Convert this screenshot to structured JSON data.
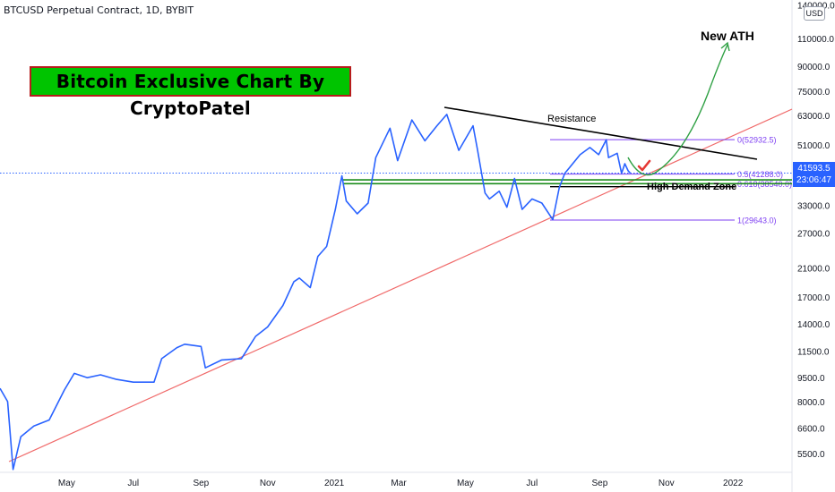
{
  "header": {
    "symbol_line": "BTCUSD Perpetual Contract, 1D, BYBIT"
  },
  "banner": {
    "text": "Bitcoin Exclusive Chart By CryptoPatel"
  },
  "scale_unit": "USD",
  "last_price": {
    "value": "41593.5",
    "countdown": "23:06:47"
  },
  "annotations": {
    "resistance": "Resistance",
    "new_ath": "New ATH",
    "demand_zone": "High Demand Zone"
  },
  "fib_levels": [
    {
      "label": "0(52932.5)",
      "price": 52932.5
    },
    {
      "label": "0.5(41288.0)",
      "price": 41288.0
    },
    {
      "label": "0.618(38540.0)",
      "price": 38540.0
    },
    {
      "label": "1(29643.0)",
      "price": 29643.0
    }
  ],
  "chart_data": {
    "type": "line",
    "y_scale": "log",
    "ylim": [
      4800,
      145000
    ],
    "y_ticks": [
      {
        "value": 140000,
        "label": "140000.0"
      },
      {
        "value": 110000,
        "label": "110000.0"
      },
      {
        "value": 90000,
        "label": "90000.0"
      },
      {
        "value": 75000,
        "label": "75000.0"
      },
      {
        "value": 63000,
        "label": "63000.0"
      },
      {
        "value": 51000,
        "label": "51000.0"
      },
      {
        "value": 33000,
        "label": "33000.0"
      },
      {
        "value": 27000,
        "label": "27000.0"
      },
      {
        "value": 21000,
        "label": "21000.0"
      },
      {
        "value": 17000,
        "label": "17000.0"
      },
      {
        "value": 14000,
        "label": "14000.0"
      },
      {
        "value": 11500,
        "label": "11500.0"
      },
      {
        "value": 9500,
        "label": "9500.0"
      },
      {
        "value": 8000,
        "label": "8000.0"
      },
      {
        "value": 6600,
        "label": "6600.0"
      },
      {
        "value": 5500,
        "label": "5500.0"
      }
    ],
    "x_ticks": [
      {
        "date": "2020-05-01",
        "label": "May"
      },
      {
        "date": "2020-07-01",
        "label": "Jul"
      },
      {
        "date": "2020-09-01",
        "label": "Sep"
      },
      {
        "date": "2020-11-01",
        "label": "Nov"
      },
      {
        "date": "2021-01-01",
        "label": "2021"
      },
      {
        "date": "2021-03-01",
        "label": "Mar"
      },
      {
        "date": "2021-05-01",
        "label": "May"
      },
      {
        "date": "2021-07-01",
        "label": "Jul"
      },
      {
        "date": "2021-09-01",
        "label": "Sep"
      },
      {
        "date": "2021-11-01",
        "label": "Nov"
      },
      {
        "date": "2022-01-01",
        "label": "2022"
      }
    ],
    "x_range": [
      "2020-03-01",
      "2022-02-24"
    ],
    "series": [
      {
        "color": "#2962ff",
        "points": [
          [
            "2020-03-01",
            8800
          ],
          [
            "2020-03-08",
            8000
          ],
          [
            "2020-03-13",
            4900
          ],
          [
            "2020-03-20",
            6200
          ],
          [
            "2020-04-01",
            6700
          ],
          [
            "2020-04-15",
            7000
          ],
          [
            "2020-04-29",
            8700
          ],
          [
            "2020-05-08",
            9800
          ],
          [
            "2020-05-20",
            9500
          ],
          [
            "2020-06-01",
            9700
          ],
          [
            "2020-06-15",
            9400
          ],
          [
            "2020-07-01",
            9200
          ],
          [
            "2020-07-20",
            9200
          ],
          [
            "2020-07-27",
            10900
          ],
          [
            "2020-08-10",
            11800
          ],
          [
            "2020-08-17",
            12100
          ],
          [
            "2020-09-01",
            11900
          ],
          [
            "2020-09-05",
            10200
          ],
          [
            "2020-09-20",
            10800
          ],
          [
            "2020-10-08",
            10900
          ],
          [
            "2020-10-21",
            12800
          ],
          [
            "2020-11-01",
            13700
          ],
          [
            "2020-11-15",
            16000
          ],
          [
            "2020-11-25",
            19000
          ],
          [
            "2020-11-30",
            19500
          ],
          [
            "2020-12-10",
            18200
          ],
          [
            "2020-12-17",
            22800
          ],
          [
            "2020-12-25",
            24500
          ],
          [
            "2021-01-02",
            32000
          ],
          [
            "2021-01-08",
            40800
          ],
          [
            "2021-01-12",
            34000
          ],
          [
            "2021-01-22",
            31000
          ],
          [
            "2021-02-01",
            33500
          ],
          [
            "2021-02-08",
            46500
          ],
          [
            "2021-02-21",
            57500
          ],
          [
            "2021-02-28",
            45500
          ],
          [
            "2021-03-13",
            61000
          ],
          [
            "2021-03-25",
            52500
          ],
          [
            "2021-04-05",
            58500
          ],
          [
            "2021-04-14",
            63500
          ],
          [
            "2021-04-25",
            49000
          ],
          [
            "2021-05-08",
            58500
          ],
          [
            "2021-05-12",
            49500
          ],
          [
            "2021-05-19",
            36000
          ],
          [
            "2021-05-23",
            34500
          ],
          [
            "2021-06-01",
            36500
          ],
          [
            "2021-06-08",
            32500
          ],
          [
            "2021-06-15",
            40000
          ],
          [
            "2021-06-22",
            32000
          ],
          [
            "2021-07-01",
            34500
          ],
          [
            "2021-07-10",
            33500
          ],
          [
            "2021-07-20",
            29700
          ],
          [
            "2021-07-26",
            37500
          ],
          [
            "2021-07-31",
            41500
          ],
          [
            "2021-08-14",
            47500
          ],
          [
            "2021-08-23",
            50000
          ],
          [
            "2021-08-31",
            47500
          ],
          [
            "2021-09-07",
            52900
          ],
          [
            "2021-09-09",
            46500
          ],
          [
            "2021-09-17",
            48000
          ],
          [
            "2021-09-21",
            41500
          ],
          [
            "2021-09-24",
            44500
          ],
          [
            "2021-09-27",
            42300
          ],
          [
            "2021-09-29",
            41593.5
          ]
        ]
      }
    ]
  }
}
